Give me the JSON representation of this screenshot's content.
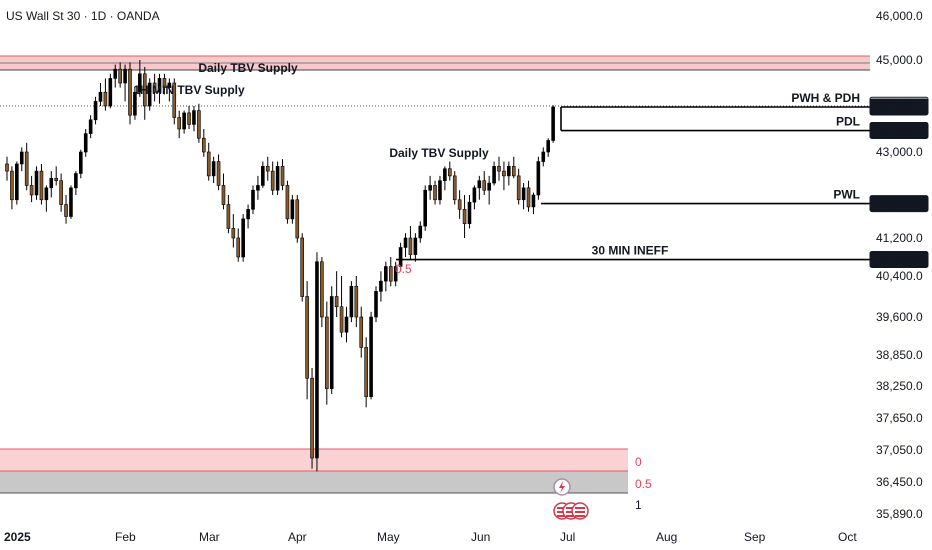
{
  "header": {
    "title": "US Wall St 30 · 1D · OANDA"
  },
  "chart_data": {
    "type": "candlestick",
    "title": "US Wall St 30 · 1D · OANDA",
    "yaxis": {
      "ticks": [
        {
          "value": 46000,
          "label": "46,000.0"
        },
        {
          "value": 45000,
          "label": "45,000.0"
        },
        {
          "value": 43000,
          "label": "43,000.0"
        },
        {
          "value": 41200,
          "label": "41,200.0"
        },
        {
          "value": 40400,
          "label": "40,400.0"
        },
        {
          "value": 39600,
          "label": "39,600.0"
        },
        {
          "value": 38850,
          "label": "38,850.0"
        },
        {
          "value": 38250,
          "label": "38,250.0"
        },
        {
          "value": 37650,
          "label": "37,650.0"
        },
        {
          "value": 37050,
          "label": "37,050.0"
        },
        {
          "value": 36450,
          "label": "36,450.0"
        },
        {
          "value": 35890,
          "label": "35,890.0"
        }
      ]
    },
    "xaxis": {
      "ticks": [
        {
          "label": "2025",
          "bold": true
        },
        {
          "label": "Feb"
        },
        {
          "label": "Mar"
        },
        {
          "label": "Apr"
        },
        {
          "label": "May"
        },
        {
          "label": "Jun"
        },
        {
          "label": "Jul"
        },
        {
          "label": "Aug"
        },
        {
          "label": "Sep"
        },
        {
          "label": "Oct"
        }
      ]
    },
    "price_labels": [
      {
        "value": 44016.9,
        "label": "44,016.9",
        "style": "outline"
      },
      {
        "value": 43978.4,
        "label": "43,978.4",
        "style": "filled"
      },
      {
        "value": 43466.7,
        "label": "43,466.7",
        "style": "filled"
      },
      {
        "value": 41919.8,
        "label": "41,919.8",
        "style": "filled"
      },
      {
        "value": 40746.6,
        "label": "40,746.6",
        "style": "filled"
      }
    ],
    "levels": [
      {
        "label": "PWH & PDH",
        "value": 43978.4
      },
      {
        "label": "PDL",
        "value": 43466.7
      },
      {
        "label": "PWL",
        "value": 41919.8
      },
      {
        "label": "30 MIN INEFF",
        "value": 40746.6
      }
    ],
    "annotations": [
      {
        "text": "Daily TBV Supply"
      },
      {
        "text": "1H MIN TBV Supply"
      },
      {
        "text": "Daily TBV Supply"
      }
    ],
    "fib_labels": [
      "0",
      "0.5",
      "1"
    ],
    "fib_mid_label": "0.5",
    "colors": {
      "up": "#000000",
      "down": "#8b5a2b",
      "supply_zone": "#f8c9cc",
      "supply_line": "#e35d6a",
      "fib_zone_top": "#fbd2d4",
      "fib_zone_bottom": "#c8c8c8",
      "fib_text": "#e0465a"
    },
    "candles": [
      [
        42750,
        42900,
        42400,
        42600
      ],
      [
        42600,
        42700,
        41800,
        42000
      ],
      [
        42000,
        42800,
        41900,
        42750
      ],
      [
        42750,
        43100,
        42600,
        43000
      ],
      [
        43000,
        43200,
        42200,
        42300
      ],
      [
        42300,
        42500,
        41950,
        42100
      ],
      [
        42100,
        42700,
        42000,
        42600
      ],
      [
        42600,
        42750,
        41900,
        42000
      ],
      [
        42000,
        42300,
        41750,
        42250
      ],
      [
        42250,
        42600,
        42050,
        42450
      ],
      [
        42450,
        42700,
        42300,
        42400
      ],
      [
        42400,
        42550,
        41750,
        41900
      ],
      [
        41900,
        42100,
        41500,
        41650
      ],
      [
        41650,
        42300,
        41600,
        42250
      ],
      [
        42250,
        42600,
        42100,
        42550
      ],
      [
        42550,
        43050,
        42450,
        43000
      ],
      [
        43000,
        43500,
        42900,
        43400
      ],
      [
        43400,
        43800,
        43300,
        43700
      ],
      [
        43700,
        44200,
        43600,
        44100
      ],
      [
        44100,
        44500,
        44000,
        44300
      ],
      [
        44300,
        44600,
        43900,
        44000
      ],
      [
        44000,
        44700,
        43950,
        44600
      ],
      [
        44600,
        44900,
        44400,
        44800
      ],
      [
        44800,
        44950,
        44400,
        44500
      ],
      [
        44500,
        44900,
        44100,
        44800
      ],
      [
        44800,
        44950,
        43600,
        43800
      ],
      [
        43800,
        44400,
        43700,
        44300
      ],
      [
        44300,
        45000,
        44200,
        44700
      ],
      [
        44700,
        44850,
        43700,
        44000
      ],
      [
        44000,
        44600,
        43900,
        44500
      ],
      [
        44500,
        44700,
        44100,
        44300
      ],
      [
        44300,
        44700,
        44050,
        44600
      ],
      [
        44600,
        44700,
        44250,
        44400
      ],
      [
        44400,
        44600,
        44100,
        44500
      ],
      [
        44500,
        44600,
        43600,
        43750
      ],
      [
        43750,
        43900,
        43300,
        43500
      ],
      [
        43500,
        43900,
        43400,
        43850
      ],
      [
        43850,
        44000,
        43500,
        43600
      ],
      [
        43600,
        44000,
        43450,
        43900
      ],
      [
        43900,
        44050,
        43200,
        43300
      ],
      [
        43300,
        43500,
        42900,
        43000
      ],
      [
        43000,
        43200,
        42400,
        42500
      ],
      [
        42500,
        42900,
        42350,
        42800
      ],
      [
        42800,
        42950,
        42200,
        42300
      ],
      [
        42300,
        42550,
        41800,
        41900
      ],
      [
        41900,
        42100,
        41300,
        41400
      ],
      [
        41400,
        41700,
        41000,
        41200
      ],
      [
        41200,
        41400,
        40700,
        40800
      ],
      [
        40800,
        41700,
        40700,
        41600
      ],
      [
        41600,
        41900,
        41400,
        41800
      ],
      [
        41800,
        42300,
        41700,
        42200
      ],
      [
        42200,
        42500,
        42000,
        42300
      ],
      [
        42300,
        42800,
        42250,
        42700
      ],
      [
        42700,
        42900,
        42400,
        42600
      ],
      [
        42600,
        42800,
        42100,
        42200
      ],
      [
        42200,
        42800,
        42100,
        42700
      ],
      [
        42700,
        42850,
        42200,
        42300
      ],
      [
        42300,
        42400,
        41500,
        41600
      ],
      [
        41600,
        42100,
        41500,
        42000
      ],
      [
        42000,
        42100,
        41100,
        41200
      ],
      [
        41200,
        41300,
        39900,
        40000
      ],
      [
        40000,
        40300,
        38000,
        38400
      ],
      [
        38400,
        38600,
        36700,
        36900
      ],
      [
        36900,
        40900,
        36650,
        40700
      ],
      [
        40700,
        40800,
        39400,
        39600
      ],
      [
        39600,
        39900,
        37900,
        38200
      ],
      [
        38200,
        40200,
        38100,
        40000
      ],
      [
        40000,
        40500,
        39600,
        39800
      ],
      [
        39800,
        40400,
        39200,
        39300
      ],
      [
        39300,
        39800,
        39100,
        39600
      ],
      [
        39600,
        40300,
        39500,
        40200
      ],
      [
        40200,
        40400,
        39400,
        39600
      ],
      [
        39600,
        39800,
        38800,
        39000
      ],
      [
        39000,
        39200,
        37850,
        38050
      ],
      [
        38050,
        39700,
        38000,
        39600
      ],
      [
        39600,
        40200,
        39500,
        40100
      ],
      [
        40100,
        40500,
        39900,
        40300
      ],
      [
        40300,
        40700,
        40100,
        40600
      ],
      [
        40600,
        40800,
        40200,
        40300
      ],
      [
        40300,
        40700,
        40200,
        40600
      ],
      [
        40600,
        41100,
        40500,
        41000
      ],
      [
        41000,
        41300,
        40800,
        41200
      ],
      [
        41200,
        41450,
        40750,
        40850
      ],
      [
        40850,
        41300,
        40700,
        41200
      ],
      [
        41200,
        41550,
        41100,
        41450
      ],
      [
        41450,
        42300,
        41350,
        42200
      ],
      [
        42200,
        42500,
        42000,
        42300
      ],
      [
        42300,
        42400,
        41900,
        42000
      ],
      [
        42000,
        42500,
        41900,
        42400
      ],
      [
        42400,
        42700,
        42200,
        42650
      ],
      [
        42650,
        42800,
        42400,
        42500
      ],
      [
        42500,
        42600,
        41900,
        42000
      ],
      [
        42000,
        42200,
        41600,
        41800
      ],
      [
        41800,
        42100,
        41200,
        41500
      ],
      [
        41500,
        42100,
        41400,
        41950
      ],
      [
        41950,
        42300,
        41800,
        42250
      ],
      [
        42250,
        42500,
        42000,
        42400
      ],
      [
        42400,
        42600,
        42100,
        42200
      ],
      [
        42200,
        42500,
        41900,
        42350
      ],
      [
        42350,
        42800,
        42300,
        42700
      ],
      [
        42700,
        42900,
        42400,
        42600
      ],
      [
        42600,
        42800,
        42200,
        42500
      ],
      [
        42500,
        42800,
        42300,
        42700
      ],
      [
        42700,
        42900,
        42450,
        42500
      ],
      [
        42500,
        42650,
        41900,
        42000
      ],
      [
        42000,
        42350,
        41800,
        42250
      ],
      [
        42250,
        42400,
        41750,
        41850
      ],
      [
        41850,
        42150,
        41700,
        42100
      ],
      [
        42100,
        42900,
        42000,
        42800
      ],
      [
        42800,
        43100,
        42700,
        43000
      ],
      [
        43000,
        43300,
        42900,
        43250
      ],
      [
        43250,
        44016.9,
        43200,
        43978.4
      ]
    ]
  }
}
